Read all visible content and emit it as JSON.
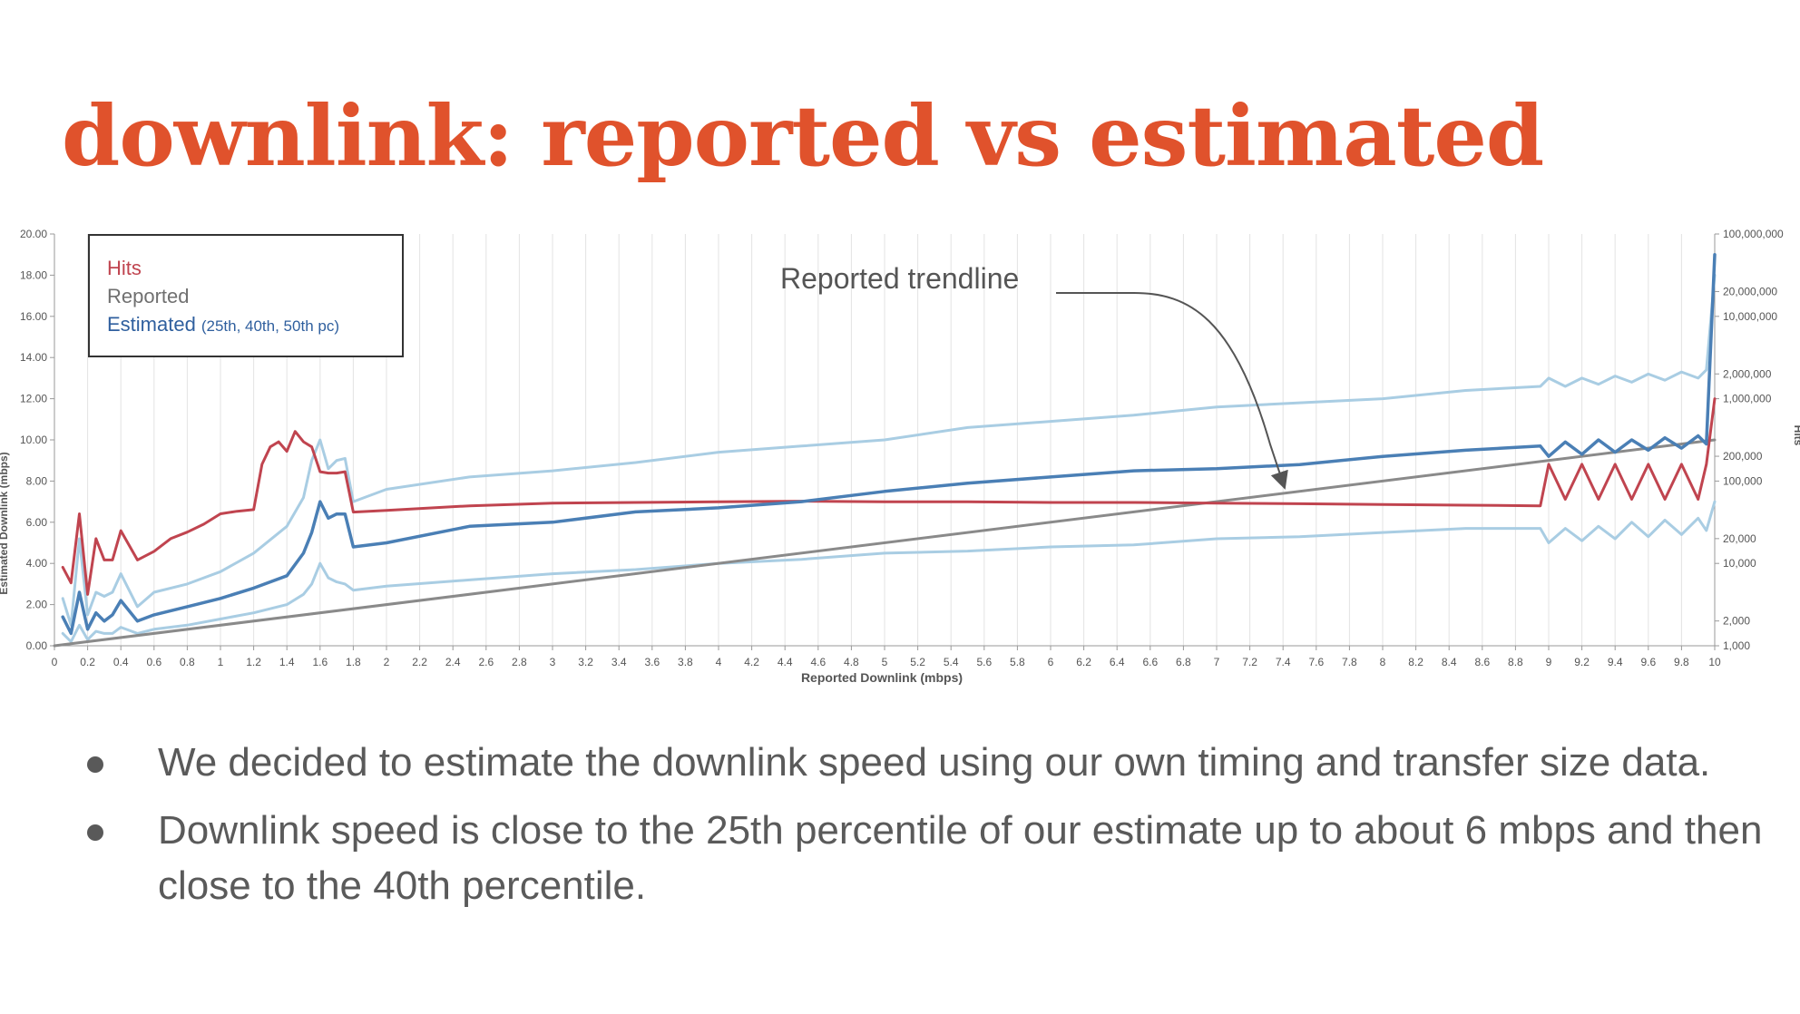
{
  "slide": {
    "title": "downlink: reported vs estimated",
    "bullets": [
      "We decided to estimate the downlink speed using our own timing and transfer size data.",
      "Downlink speed is close to the 25th percentile of our estimate up to about 6 mbps and then close to the 40th percentile."
    ]
  },
  "chart_data": {
    "type": "line",
    "xlabel": "Reported Downlink (mbps)",
    "ylabel": "Estimated Downlink (mbps)",
    "y2label": "Hits",
    "xlim": [
      0,
      10
    ],
    "ylim": [
      0,
      20
    ],
    "y2_scale": "log",
    "y2lim": [
      1000,
      100000000
    ],
    "x_ticks": [
      "0",
      "0.2",
      "0.4",
      "0.6",
      "0.8",
      "1",
      "1.2",
      "1.4",
      "1.6",
      "1.8",
      "2",
      "2.2",
      "2.4",
      "2.6",
      "2.8",
      "3",
      "3.2",
      "3.4",
      "3.6",
      "3.8",
      "4",
      "4.2",
      "4.4",
      "4.6",
      "4.8",
      "5",
      "5.2",
      "5.4",
      "5.6",
      "5.8",
      "6",
      "6.2",
      "6.4",
      "6.6",
      "6.8",
      "7",
      "7.2",
      "7.4",
      "7.6",
      "7.8",
      "8",
      "8.2",
      "8.4",
      "8.6",
      "8.8",
      "9",
      "9.2",
      "9.4",
      "9.6",
      "9.8",
      "10"
    ],
    "y_ticks": [
      "0.00",
      "2.00",
      "4.00",
      "6.00",
      "8.00",
      "10.00",
      "12.00",
      "14.00",
      "16.00",
      "18.00",
      "20.00"
    ],
    "y2_ticks": [
      "1,000",
      "2,000",
      "10,000",
      "20,000",
      "100,000",
      "200,000",
      "1,000,000",
      "2,000,000",
      "10,000,000",
      "20,000,000",
      "100,000,000"
    ],
    "grid": true,
    "legend_position": "top-left",
    "legend": {
      "hits": "Hits",
      "reported": "Reported",
      "estimated": "Estimated",
      "estimated_note": "(25th, 40th, 50th pc)"
    },
    "annotation": "Reported trendline",
    "colors": {
      "hits": "#c0444f",
      "reported": "#8a8a8a",
      "estimated_25": "#a9cde3",
      "estimated_40": "#4a7fb5",
      "estimated_50": "#a9cde3",
      "title": "#e0522c"
    },
    "series": [
      {
        "key": "hits",
        "name": "Hits",
        "axis": "right",
        "x": [
          0.05,
          0.1,
          0.15,
          0.2,
          0.25,
          0.3,
          0.35,
          0.4,
          0.5,
          0.6,
          0.7,
          0.8,
          0.9,
          1.0,
          1.1,
          1.2,
          1.25,
          1.3,
          1.35,
          1.4,
          1.45,
          1.5,
          1.55,
          1.6,
          1.65,
          1.7,
          1.75,
          1.8,
          2.0,
          2.5,
          3.0,
          3.5,
          4.0,
          4.5,
          5.0,
          5.5,
          6.0,
          6.5,
          7.0,
          7.5,
          8.0,
          8.5,
          8.95,
          9.0,
          9.1,
          9.2,
          9.3,
          9.4,
          9.5,
          9.6,
          9.7,
          9.8,
          9.9,
          9.95,
          10.0
        ],
        "values": [
          9000,
          5800,
          40000,
          4200,
          20000,
          11000,
          11000,
          25000,
          11000,
          14000,
          20000,
          24000,
          30000,
          40000,
          43000,
          45000,
          160000,
          260000,
          300000,
          230000,
          400000,
          300000,
          260000,
          130000,
          125000,
          125000,
          130000,
          42000,
          44000,
          50000,
          54000,
          55000,
          56000,
          57000,
          56000,
          56000,
          55000,
          55000,
          54000,
          53000,
          52000,
          51000,
          50000,
          160000,
          60000,
          160000,
          60000,
          160000,
          60000,
          160000,
          60000,
          160000,
          60000,
          160000,
          1000000
        ]
      },
      {
        "key": "reported",
        "name": "Reported",
        "axis": "left",
        "x": [
          0,
          10
        ],
        "values": [
          0,
          10
        ]
      },
      {
        "key": "estimated_25",
        "axis": "left",
        "x": [
          0.05,
          0.1,
          0.15,
          0.2,
          0.25,
          0.3,
          0.35,
          0.4,
          0.5,
          0.6,
          0.8,
          1.0,
          1.2,
          1.4,
          1.5,
          1.55,
          1.6,
          1.65,
          1.7,
          1.75,
          1.8,
          2.0,
          2.5,
          3.0,
          3.5,
          4.0,
          4.5,
          5.0,
          5.5,
          6.0,
          6.5,
          7.0,
          7.5,
          8.0,
          8.5,
          8.95,
          9.0,
          9.1,
          9.2,
          9.3,
          9.4,
          9.5,
          9.6,
          9.7,
          9.8,
          9.9,
          9.95,
          10.0
        ],
        "values": [
          0.6,
          0.2,
          1.0,
          0.3,
          0.7,
          0.6,
          0.6,
          0.9,
          0.6,
          0.8,
          1.0,
          1.3,
          1.6,
          2.0,
          2.5,
          3.0,
          4.0,
          3.3,
          3.1,
          3.0,
          2.7,
          2.9,
          3.2,
          3.5,
          3.7,
          4.0,
          4.2,
          4.5,
          4.6,
          4.8,
          4.9,
          5.2,
          5.3,
          5.5,
          5.7,
          5.7,
          5.0,
          5.7,
          5.1,
          5.8,
          5.2,
          6.0,
          5.3,
          6.1,
          5.4,
          6.2,
          5.6,
          7.0
        ]
      },
      {
        "key": "estimated_40",
        "axis": "left",
        "x": [
          0.05,
          0.1,
          0.15,
          0.2,
          0.25,
          0.3,
          0.35,
          0.4,
          0.5,
          0.6,
          0.8,
          1.0,
          1.2,
          1.4,
          1.5,
          1.55,
          1.6,
          1.65,
          1.7,
          1.75,
          1.8,
          2.0,
          2.5,
          3.0,
          3.5,
          4.0,
          4.5,
          5.0,
          5.5,
          6.0,
          6.5,
          7.0,
          7.5,
          8.0,
          8.5,
          8.95,
          9.0,
          9.1,
          9.2,
          9.3,
          9.4,
          9.5,
          9.6,
          9.7,
          9.8,
          9.9,
          9.95,
          10.0
        ],
        "values": [
          1.4,
          0.6,
          2.6,
          0.8,
          1.6,
          1.2,
          1.5,
          2.2,
          1.2,
          1.5,
          1.9,
          2.3,
          2.8,
          3.4,
          4.5,
          5.5,
          7.0,
          6.2,
          6.4,
          6.4,
          4.8,
          5.0,
          5.8,
          6.0,
          6.5,
          6.7,
          7.0,
          7.5,
          7.9,
          8.2,
          8.5,
          8.6,
          8.8,
          9.2,
          9.5,
          9.7,
          9.2,
          9.9,
          9.3,
          10.0,
          9.4,
          10.0,
          9.5,
          10.1,
          9.6,
          10.2,
          9.8,
          19.0
        ]
      },
      {
        "key": "estimated_50",
        "axis": "left",
        "x": [
          0.05,
          0.1,
          0.15,
          0.2,
          0.25,
          0.3,
          0.35,
          0.4,
          0.5,
          0.6,
          0.8,
          1.0,
          1.2,
          1.4,
          1.5,
          1.55,
          1.6,
          1.65,
          1.7,
          1.75,
          1.8,
          2.0,
          2.5,
          3.0,
          3.5,
          4.0,
          4.5,
          5.0,
          5.5,
          6.0,
          6.5,
          7.0,
          7.5,
          8.0,
          8.5,
          8.95,
          9.0,
          9.1,
          9.2,
          9.3,
          9.4,
          9.5,
          9.6,
          9.7,
          9.8,
          9.9,
          9.95,
          10.0
        ],
        "values": [
          2.3,
          1.0,
          5.2,
          1.5,
          2.6,
          2.4,
          2.6,
          3.5,
          1.9,
          2.6,
          3.0,
          3.6,
          4.5,
          5.8,
          7.2,
          9.0,
          10.0,
          8.6,
          9.0,
          9.1,
          7.0,
          7.6,
          8.2,
          8.5,
          8.9,
          9.4,
          9.7,
          10.0,
          10.6,
          10.9,
          11.2,
          11.6,
          11.8,
          12.0,
          12.4,
          12.6,
          13.0,
          12.6,
          13.0,
          12.7,
          13.1,
          12.8,
          13.2,
          12.9,
          13.3,
          13.0,
          13.4,
          18.0
        ]
      }
    ]
  }
}
